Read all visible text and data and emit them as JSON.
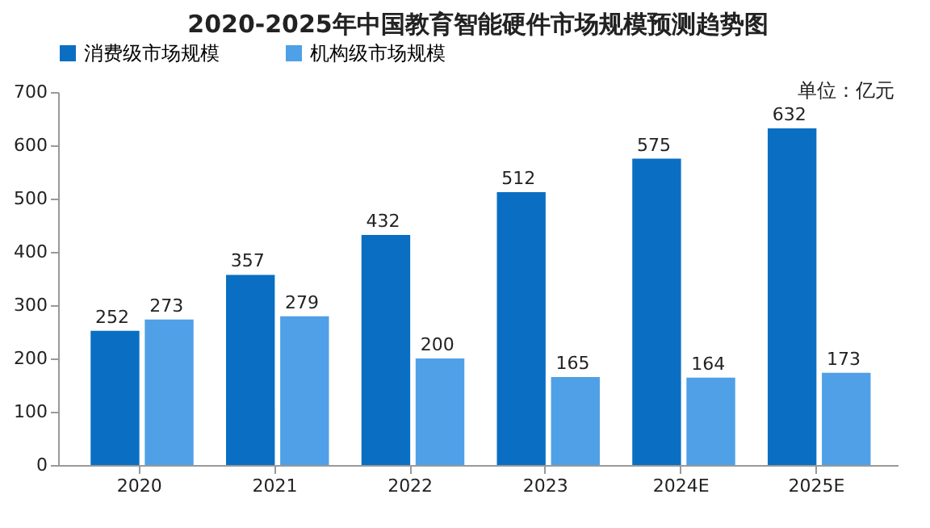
{
  "chart_data": {
    "type": "bar",
    "title": "2020-2025年中国教育智能硬件市场规模预测趋势图",
    "categories": [
      "2020",
      "2021",
      "2022",
      "2023",
      "2024E",
      "2025E"
    ],
    "series": [
      {
        "name": "消费级市场规模",
        "color": "#0a6fc2",
        "values": [
          252,
          357,
          432,
          512,
          575,
          632
        ]
      },
      {
        "name": "机构级市场规模",
        "color": "#4fa0e6",
        "values": [
          273,
          279,
          200,
          165,
          164,
          173
        ]
      }
    ],
    "ylim": [
      0,
      700
    ],
    "yticks": [
      0,
      100,
      200,
      300,
      400,
      500,
      600,
      700
    ],
    "grid": false,
    "legend": "top",
    "data_labels": true,
    "annotations": [
      "单位：亿元"
    ]
  }
}
